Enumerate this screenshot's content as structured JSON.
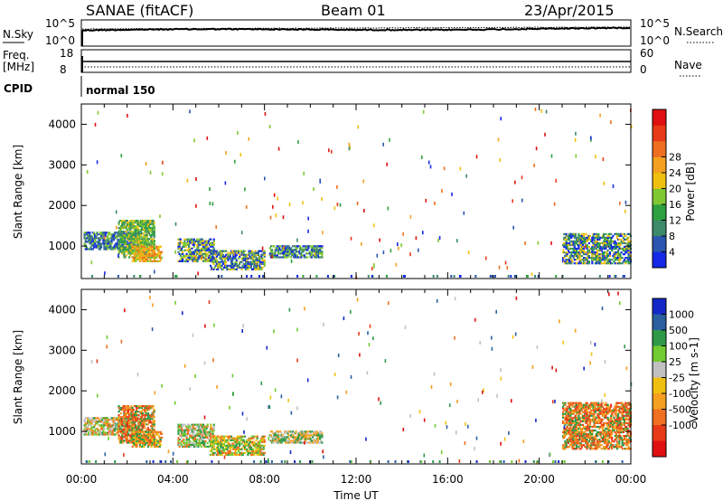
{
  "header": {
    "station": "SANAE (fitACF)",
    "beam": "Beam 01",
    "date": "23/Apr/2015"
  },
  "top_panels": {
    "nsky_label": "N.Sky",
    "nsky_ticks": [
      "10^5",
      "10^0"
    ],
    "nsearch_label": "N.Search",
    "nsearch_ticks": [
      "10^5",
      "10^0"
    ],
    "freq_label": "Freq.",
    "freq_unit": "[MHz]",
    "freq_ticks": [
      "18",
      "8"
    ],
    "nave_label": "Nave",
    "nave_ticks": [
      "60",
      "0"
    ],
    "cpid_label": "CPID",
    "cpid_value": "normal 150"
  },
  "chart_data": [
    {
      "type": "heatmap",
      "name": "power-panel",
      "ylabel": "Slant Range [km]",
      "yticks": [
        1000,
        2000,
        3000,
        4000
      ],
      "ylim": [
        200,
        4500
      ],
      "xlim": [
        0,
        24
      ],
      "xlabel": "Time UT",
      "xtick_labels": [
        "00:00",
        "04:00",
        "08:00",
        "12:00",
        "16:00",
        "20:00",
        "00:00"
      ],
      "colorbar": {
        "label": "Power [dB]",
        "tick_labels": [
          "4",
          "8",
          "12",
          "16",
          "20",
          "24",
          "28"
        ],
        "colors": [
          "#1428e6",
          "#2a55b0",
          "#3d8a6a",
          "#2ea040",
          "#80c832",
          "#f0c010",
          "#f5a020",
          "#ee7020",
          "#e83a18",
          "#e01010"
        ]
      },
      "clusters": [
        {
          "t0": 0.1,
          "t1": 2.6,
          "r0": 900,
          "r1": 1350,
          "colors": [
            "#1428e6",
            "#3d8a6a",
            "#80c832",
            "#2a55b0"
          ]
        },
        {
          "t0": 1.6,
          "t1": 3.2,
          "r0": 700,
          "r1": 1650,
          "colors": [
            "#80c832",
            "#3d8a6a",
            "#f0c010",
            "#2ea040"
          ]
        },
        {
          "t0": 2.2,
          "t1": 3.5,
          "r0": 600,
          "r1": 1000,
          "colors": [
            "#f0c010",
            "#ee7020",
            "#f5a020",
            "#80c832"
          ]
        },
        {
          "t0": 4.2,
          "t1": 5.8,
          "r0": 600,
          "r1": 1200,
          "colors": [
            "#1428e6",
            "#80c832",
            "#3d8a6a",
            "#f0c010"
          ]
        },
        {
          "t0": 5.6,
          "t1": 8.0,
          "r0": 400,
          "r1": 900,
          "colors": [
            "#1428e6",
            "#2a55b0",
            "#3d8a6a",
            "#80c832",
            "#f0c010"
          ]
        },
        {
          "t0": 8.2,
          "t1": 10.5,
          "r0": 700,
          "r1": 1000,
          "colors": [
            "#3d8a6a",
            "#1428e6",
            "#80c832"
          ]
        },
        {
          "t0": 21.0,
          "t1": 24.0,
          "r0": 550,
          "r1": 1300,
          "colors": [
            "#1428e6",
            "#3d8a6a",
            "#2ea040",
            "#f0c010"
          ]
        }
      ]
    },
    {
      "type": "heatmap",
      "name": "velocity-panel",
      "ylabel": "Slant Range [km]",
      "yticks": [
        1000,
        2000,
        3000,
        4000
      ],
      "ylim": [
        200,
        4500
      ],
      "xlim": [
        0,
        24
      ],
      "xlabel": "Time UT",
      "xtick_labels": [
        "00:00",
        "04:00",
        "08:00",
        "12:00",
        "16:00",
        "20:00",
        "00:00"
      ],
      "colorbar": {
        "label": "Velocity [m s-1]",
        "tick_labels": [
          "1000",
          "500",
          "100",
          "25",
          "-25",
          "-100",
          "-500",
          "-1000"
        ],
        "colors": [
          "#1428c8",
          "#2a60a0",
          "#2e9a48",
          "#70cc30",
          "#c0c0c0",
          "#f0c010",
          "#f5a020",
          "#ee7020",
          "#e83a18",
          "#e01010"
        ]
      },
      "clusters": [
        {
          "t0": 0.1,
          "t1": 2.6,
          "r0": 900,
          "r1": 1350,
          "colors": [
            "#2e9a48",
            "#f5a020",
            "#ee7020",
            "#70cc30",
            "#c0c0c0"
          ]
        },
        {
          "t0": 1.6,
          "t1": 3.2,
          "r0": 700,
          "r1": 1650,
          "colors": [
            "#f5a020",
            "#ee7020",
            "#2e9a48",
            "#e83a18"
          ]
        },
        {
          "t0": 2.2,
          "t1": 3.5,
          "r0": 600,
          "r1": 1000,
          "colors": [
            "#f0c010",
            "#ee7020",
            "#2e9a48"
          ]
        },
        {
          "t0": 4.2,
          "t1": 5.8,
          "r0": 600,
          "r1": 1200,
          "colors": [
            "#2e9a48",
            "#70cc30",
            "#ee7020",
            "#c0c0c0"
          ]
        },
        {
          "t0": 5.6,
          "t1": 8.0,
          "r0": 400,
          "r1": 900,
          "colors": [
            "#f0c010",
            "#2e9a48",
            "#ee7020",
            "#70cc30"
          ]
        },
        {
          "t0": 8.2,
          "t1": 10.5,
          "r0": 700,
          "r1": 1000,
          "colors": [
            "#f5a020",
            "#2e9a48",
            "#c0c0c0"
          ]
        },
        {
          "t0": 21.0,
          "t1": 24.0,
          "r0": 550,
          "r1": 1700,
          "colors": [
            "#ee7020",
            "#e83a18",
            "#2e9a48",
            "#f5a020"
          ]
        }
      ]
    }
  ]
}
